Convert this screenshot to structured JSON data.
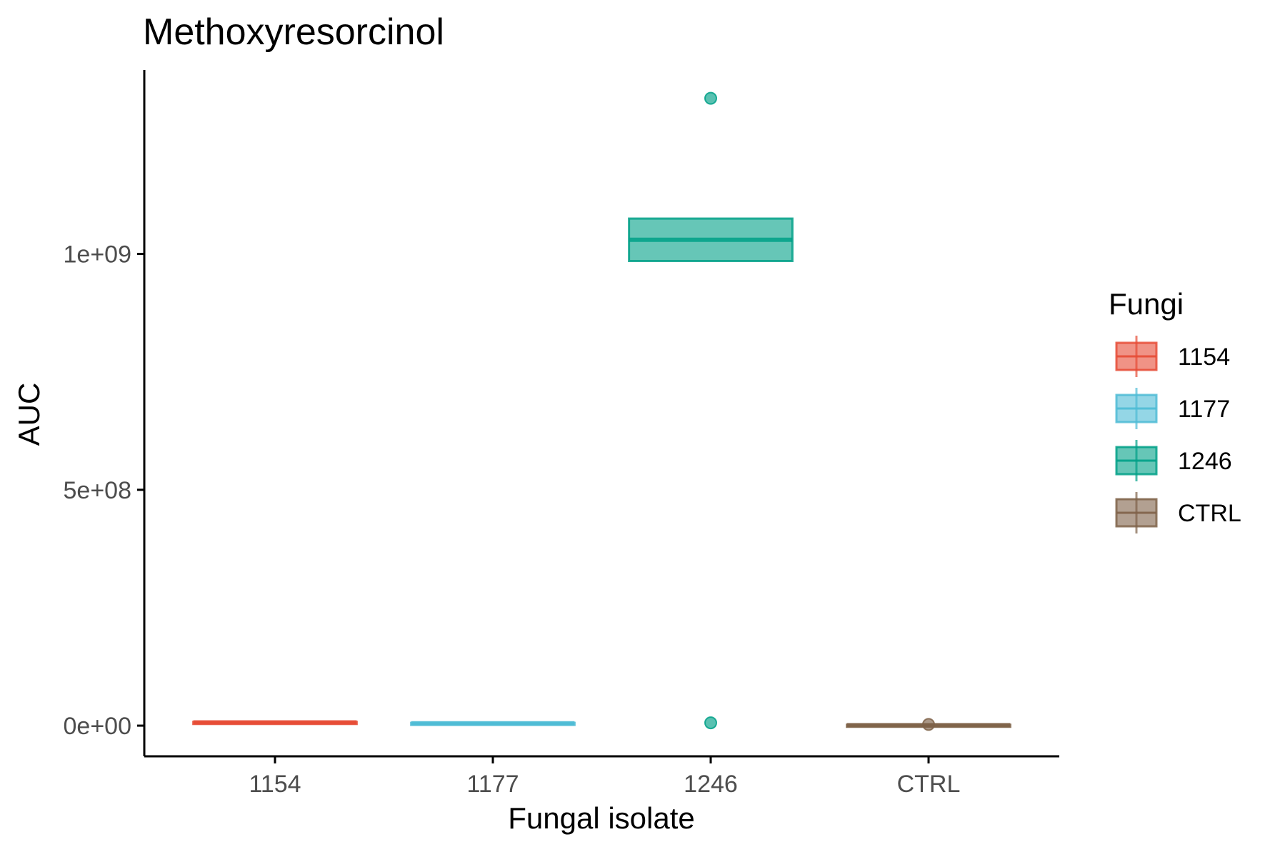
{
  "chart_data": {
    "type": "boxplot",
    "title": "Methoxyresorcinol",
    "xlabel": "Fungal isolate",
    "ylabel": "AUC",
    "categories": [
      "1154",
      "1177",
      "1246",
      "CTRL"
    ],
    "ylim": [
      -65000000,
      1390000000
    ],
    "yticks": [
      0,
      500000000,
      1000000000
    ],
    "ytick_labels": [
      "0e+00",
      "5e+08",
      "1e+09"
    ],
    "grid": false,
    "legend": {
      "title": "Fungi",
      "position": "right",
      "entries": [
        "1154",
        "1177",
        "1246",
        "CTRL"
      ]
    },
    "series": [
      {
        "name": "1154",
        "color": "#E64B35",
        "q1": 6000000,
        "median": 7000000,
        "q3": 8000000,
        "whisker_low": 5000000,
        "whisker_high": 9000000,
        "outliers": []
      },
      {
        "name": "1177",
        "color": "#4DBBD5",
        "q1": 4000000,
        "median": 5000000,
        "q3": 6000000,
        "whisker_low": 3000000,
        "whisker_high": 7000000,
        "outliers": []
      },
      {
        "name": "1246",
        "color": "#00A087",
        "q1": 985000000,
        "median": 1030000000,
        "q3": 1075000000,
        "whisker_low": 985000000,
        "whisker_high": 1075000000,
        "outliers": [
          1330000000,
          6000000
        ]
      },
      {
        "name": "CTRL",
        "color": "#7E6148",
        "q1": 0,
        "median": 1000000,
        "q3": 2000000,
        "whisker_low": 0,
        "whisker_high": 2500000,
        "outliers": [
          2500000
        ]
      }
    ]
  }
}
